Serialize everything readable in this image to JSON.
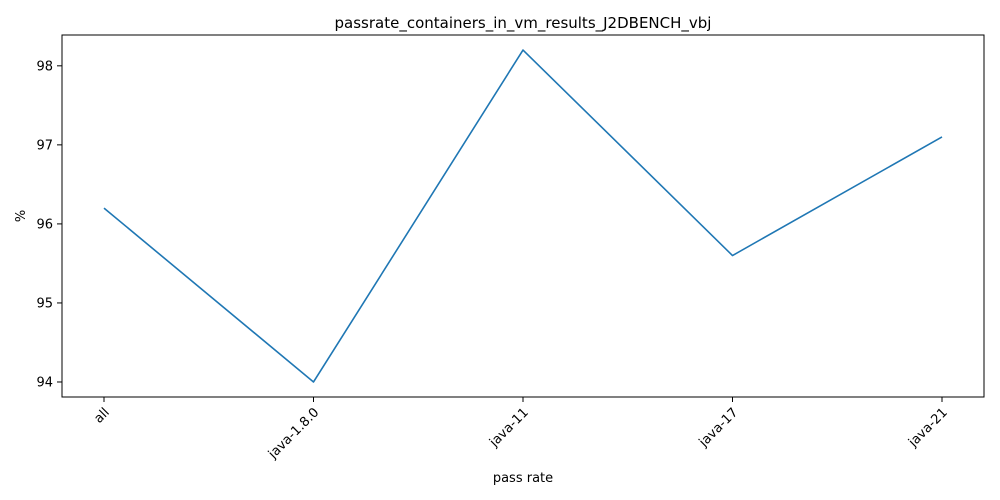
{
  "chart_data": {
    "type": "line",
    "title": "passrate_containers_in_vm_results_J2DBENCH_vbj",
    "xlabel": "pass rate",
    "ylabel": "%",
    "categories": [
      "all",
      "java-1.8.0",
      "java-11",
      "java-17",
      "java-21"
    ],
    "series": [
      {
        "values": [
          96.2,
          94.0,
          98.2,
          95.6,
          97.1
        ],
        "color": "#1f77b4"
      }
    ],
    "yticks": [
      94,
      95,
      96,
      97,
      98
    ],
    "ylim": [
      93.81,
      98.39
    ],
    "grid": false,
    "legend": "none"
  }
}
